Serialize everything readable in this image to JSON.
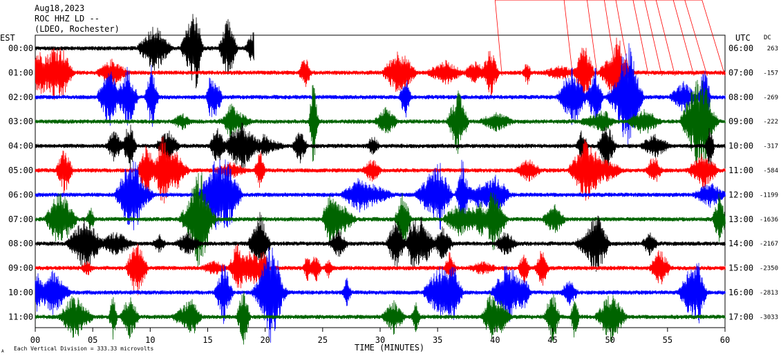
{
  "header": {
    "date": "Aug18,2023",
    "station": "ROC HHZ LD --",
    "location": "(LDEO, Rochester)"
  },
  "axes": {
    "left_label": "EST",
    "right_label": "UTC",
    "dc_label": "DC",
    "xlabel": "TIME (MINUTES)",
    "footer_note": "Each Vertical Division = 333.33 microvolts",
    "footer_mark": "A"
  },
  "colors": {
    "cycle": [
      "#000000",
      "#ff0000",
      "#0000ff",
      "#006400"
    ],
    "frame": "#000000",
    "event_marker": "#ff0000"
  },
  "chart_data": {
    "type": "line",
    "title": "",
    "xlabel": "TIME (MINUTES)",
    "ylabel": "",
    "xlim": [
      0,
      60
    ],
    "x_ticks": [
      "00",
      "05",
      "10",
      "15",
      "20",
      "25",
      "30",
      "35",
      "40",
      "45",
      "50",
      "55",
      "60"
    ],
    "grid": "none",
    "rows": [
      {
        "est": "00:00",
        "utc": "06:00",
        "dc": "263",
        "color": "#000000",
        "minutes_recorded": 19
      },
      {
        "est": "01:00",
        "utc": "07:00",
        "dc": "-157",
        "color": "#ff0000",
        "minutes_recorded": 60
      },
      {
        "est": "02:00",
        "utc": "08:00",
        "dc": "-269",
        "color": "#0000ff",
        "minutes_recorded": 60
      },
      {
        "est": "03:00",
        "utc": "09:00",
        "dc": "-222",
        "color": "#006400",
        "minutes_recorded": 60
      },
      {
        "est": "04:00",
        "utc": "10:00",
        "dc": "-317",
        "color": "#000000",
        "minutes_recorded": 60
      },
      {
        "est": "05:00",
        "utc": "11:00",
        "dc": "-584",
        "color": "#ff0000",
        "minutes_recorded": 60
      },
      {
        "est": "06:00",
        "utc": "12:00",
        "dc": "-1199",
        "color": "#0000ff",
        "minutes_recorded": 60
      },
      {
        "est": "07:00",
        "utc": "13:00",
        "dc": "-1636",
        "color": "#006400",
        "minutes_recorded": 60
      },
      {
        "est": "08:00",
        "utc": "14:00",
        "dc": "-2167",
        "color": "#000000",
        "minutes_recorded": 60
      },
      {
        "est": "09:00",
        "utc": "15:00",
        "dc": "-2350",
        "color": "#ff0000",
        "minutes_recorded": 60
      },
      {
        "est": "10:00",
        "utc": "16:00",
        "dc": "-2813",
        "color": "#0000ff",
        "minutes_recorded": 60
      },
      {
        "est": "11:00",
        "utc": "17:00",
        "dc": "-3033",
        "color": "#006400",
        "minutes_recorded": 60
      }
    ],
    "event_markers_minutes": [
      40,
      46,
      48,
      49.5,
      50.5,
      52,
      53,
      54,
      55.5,
      56.5,
      58
    ]
  }
}
